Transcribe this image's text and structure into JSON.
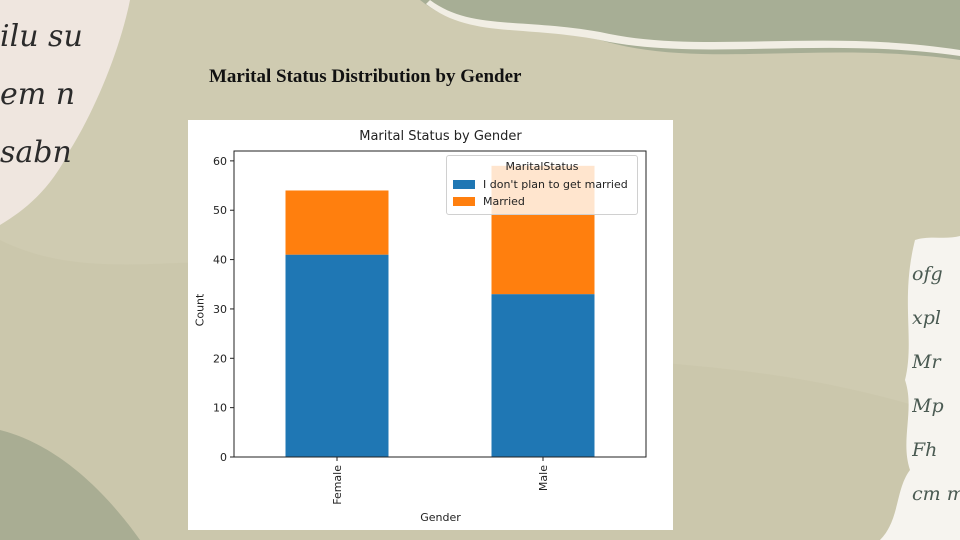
{
  "slide": {
    "title": "Marital Status Distribution by Gender",
    "handwriting": {
      "top_left": [
        "ilu su",
        "em n",
        "sabn"
      ],
      "right": [
        "ofg",
        "xpl",
        "Mr",
        "Mp",
        "Fh",
        "cm m"
      ]
    }
  },
  "colors": {
    "background": "#cfcbb1",
    "series_blue": "#1f77b4",
    "series_orange": "#ff7f0e"
  },
  "chart_data": {
    "type": "bar",
    "stacked": true,
    "title": "Marital Status by Gender",
    "xlabel": "Gender",
    "ylabel": "Count",
    "categories": [
      "Female",
      "Male"
    ],
    "ylim": [
      0,
      62
    ],
    "yticks": [
      0,
      10,
      20,
      30,
      40,
      50,
      60
    ],
    "legend": {
      "title": "MaritalStatus",
      "position": "top-right"
    },
    "series": [
      {
        "name": "I don't plan to get married",
        "values": [
          41,
          33
        ],
        "color": "#1f77b4"
      },
      {
        "name": "Married",
        "values": [
          13,
          26
        ],
        "color": "#ff7f0e"
      }
    ],
    "grid": false
  }
}
